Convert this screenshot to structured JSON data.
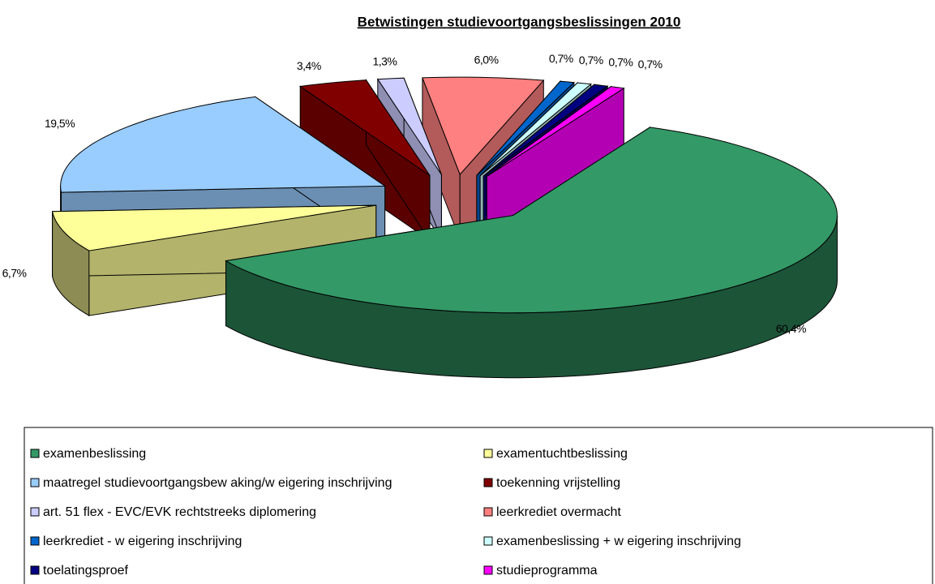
{
  "chart_data": {
    "type": "pie3d",
    "title": "Betwistingen studievoortgangsbeslissingen 2010",
    "categories": [
      "examenbeslissing",
      "examentuchtbeslissing",
      "maatregel studievoortgangsbew aking/w eigering inschrijving",
      "toekenning vrijstelling",
      "art. 51 flex - EVC/EVK rechtstreeks diplomering",
      "leerkrediet overmacht",
      "leerkrediet - w eigering inschrijving",
      "examenbeslissing + w eigering inschrijving",
      "toelatingsproef",
      "studieprogramma"
    ],
    "values": [
      60.4,
      6.7,
      19.5,
      3.4,
      1.3,
      6.0,
      0.7,
      0.7,
      0.7,
      0.7
    ],
    "value_labels": [
      "60,4%",
      "6,7%",
      "19,5%",
      "3,4%",
      "1,3%",
      "6,0%",
      "0,7%",
      "0,7%",
      "0,7%",
      "0,7%"
    ],
    "colors": [
      "#339966",
      "#FFFF99",
      "#99CCFF",
      "#800000",
      "#CCCCFF",
      "#FF8080",
      "#0066CC",
      "#CCFFFF",
      "#000080",
      "#FF00FF"
    ],
    "legend": "bottom"
  }
}
